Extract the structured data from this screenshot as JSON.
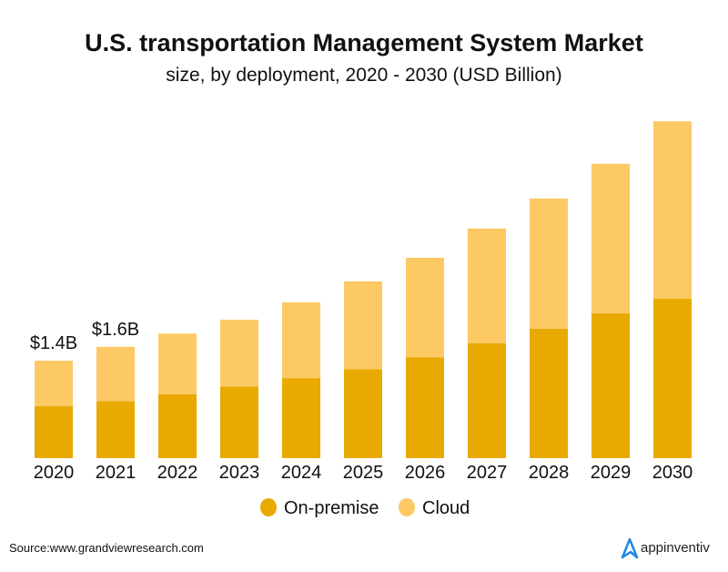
{
  "chart_data": {
    "type": "bar",
    "stacked": true,
    "title": "U.S. transportation Management System Market",
    "subtitle": "size, by deployment, 2020 - 2030 (USD Billion)",
    "xlabel": "",
    "ylabel": "",
    "ylim": [
      0,
      5
    ],
    "grid": false,
    "legend_position": "bottom",
    "categories": [
      "2020",
      "2021",
      "2022",
      "2023",
      "2024",
      "2025",
      "2026",
      "2027",
      "2028",
      "2029",
      "2030"
    ],
    "series": [
      {
        "name": "On-premise",
        "color": "#E8A900",
        "values": [
          0.75,
          0.82,
          0.92,
          1.03,
          1.15,
          1.28,
          1.45,
          1.65,
          1.86,
          2.08,
          2.29
        ]
      },
      {
        "name": "Cloud",
        "color": "#FDC964",
        "values": [
          0.65,
          0.78,
          0.87,
          0.96,
          1.09,
          1.26,
          1.43,
          1.65,
          1.87,
          2.15,
          2.55
        ]
      }
    ],
    "data_labels": [
      {
        "category": "2020",
        "text": "$1.4B"
      },
      {
        "category": "2021",
        "text": "$1.6B"
      }
    ]
  },
  "footer": {
    "source": "Source:www.grandviewresearch.com",
    "logo_text": "appinventiv",
    "logo_color": "#1E88E5"
  }
}
